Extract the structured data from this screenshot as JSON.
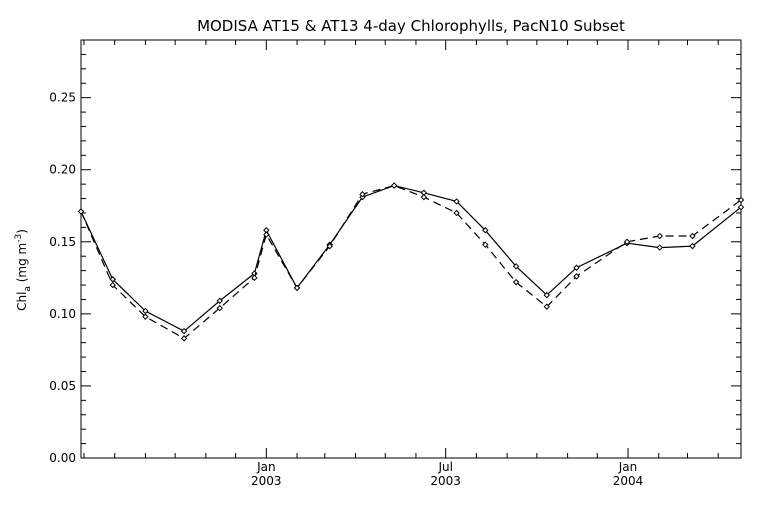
{
  "chart_data": {
    "type": "line",
    "title": "MODISA AT15 & AT13 4-day Chlorophylls, PacN10 Subset",
    "xlabel": "",
    "ylabel": "Chl",
    "ylabel_sub": "a",
    "ylabel_units": " (mg m",
    "ylabel_exp": "-3",
    "ylabel_close": ")",
    "ylim": [
      0.0,
      0.29
    ],
    "xlim": [
      "2002-06-28",
      "2004-04-24"
    ],
    "y_ticks": [
      0.0,
      0.05,
      0.1,
      0.15,
      0.2,
      0.25
    ],
    "y_tick_labels": [
      "0.00",
      "0.05",
      "0.10",
      "0.15",
      "0.20",
      "0.25"
    ],
    "x_ticks": [
      {
        "date": "2003-01-01",
        "line1": "Jan",
        "line2": "2003"
      },
      {
        "date": "2003-07-01",
        "line1": "Jul",
        "line2": "2003"
      },
      {
        "date": "2004-01-01",
        "line1": "Jan",
        "line2": "2004"
      }
    ],
    "grid": false,
    "series": [
      {
        "style": "solid",
        "color": "#000000",
        "points": [
          [
            "2002-06-28",
            0.171
          ],
          [
            "2002-07-30",
            0.124
          ],
          [
            "2002-09-01",
            0.102
          ],
          [
            "2002-10-10",
            0.088
          ],
          [
            "2002-11-15",
            0.109
          ],
          [
            "2002-12-20",
            0.128
          ],
          [
            "2003-01-01",
            0.158
          ],
          [
            "2003-02-01",
            0.118
          ],
          [
            "2003-03-06",
            0.148
          ],
          [
            "2003-04-08",
            0.181
          ],
          [
            "2003-05-10",
            0.189
          ],
          [
            "2003-06-09",
            0.184
          ],
          [
            "2003-07-12",
            0.178
          ],
          [
            "2003-08-10",
            0.158
          ],
          [
            "2003-09-10",
            0.133
          ],
          [
            "2003-10-11",
            0.113
          ],
          [
            "2003-11-10",
            0.132
          ],
          [
            "2003-12-31",
            0.149
          ],
          [
            "2004-02-02",
            0.146
          ],
          [
            "2004-03-06",
            0.147
          ],
          [
            "2004-04-24",
            0.174
          ]
        ]
      },
      {
        "style": "dashed",
        "color": "#000000",
        "points": [
          [
            "2002-06-28",
            0.171
          ],
          [
            "2002-07-30",
            0.12
          ],
          [
            "2002-09-01",
            0.098
          ],
          [
            "2002-10-10",
            0.083
          ],
          [
            "2002-11-15",
            0.104
          ],
          [
            "2002-12-20",
            0.125
          ],
          [
            "2003-01-01",
            0.155
          ],
          [
            "2003-02-01",
            0.118
          ],
          [
            "2003-03-06",
            0.147
          ],
          [
            "2003-04-08",
            0.183
          ],
          [
            "2003-05-10",
            0.189
          ],
          [
            "2003-06-09",
            0.181
          ],
          [
            "2003-07-12",
            0.17
          ],
          [
            "2003-08-10",
            0.148
          ],
          [
            "2003-09-10",
            0.122
          ],
          [
            "2003-10-11",
            0.105
          ],
          [
            "2003-11-10",
            0.126
          ],
          [
            "2003-12-31",
            0.15
          ],
          [
            "2004-02-02",
            0.154
          ],
          [
            "2004-03-06",
            0.154
          ],
          [
            "2004-04-24",
            0.179
          ]
        ]
      }
    ]
  }
}
